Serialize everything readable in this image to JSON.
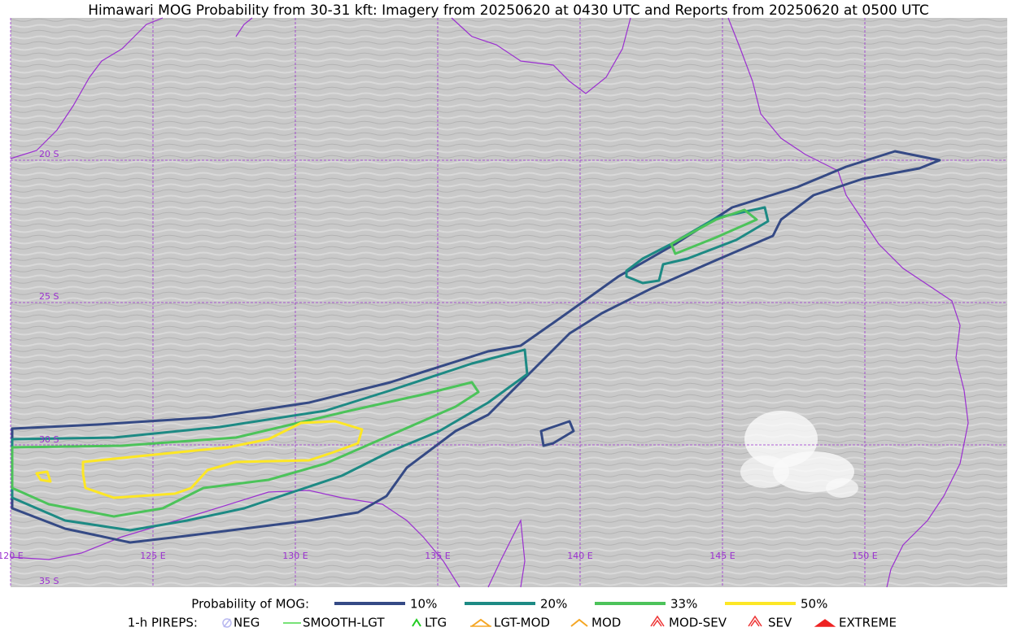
{
  "title": "Himawari MOG Probability from 30-31 kft: Imagery from 20250620 at 0430 UTC and Reports from 20250620 at 0500 UTC",
  "map": {
    "lat_labels": [
      "20 S",
      "25 S",
      "30 S",
      "35 S"
    ],
    "lon_labels": [
      "120 E",
      "125 E",
      "130 E",
      "135 E",
      "140 E",
      "145 E",
      "150 E"
    ]
  },
  "legend": {
    "mog_title": "Probability of MOG:",
    "mog_levels": [
      {
        "label": "10%",
        "color": "#354a85"
      },
      {
        "label": "20%",
        "color": "#1d8a84"
      },
      {
        "label": "33%",
        "color": "#4cc35a"
      },
      {
        "label": "50%",
        "color": "#fde725"
      }
    ],
    "pirep_title": "1-h PIREPS:",
    "pireps": [
      "NEG",
      "SMOOTH-LGT",
      "LTG",
      "LGT-MOD",
      "MOD",
      "MOD-SEV",
      "SEV",
      "EXTREME"
    ]
  }
}
